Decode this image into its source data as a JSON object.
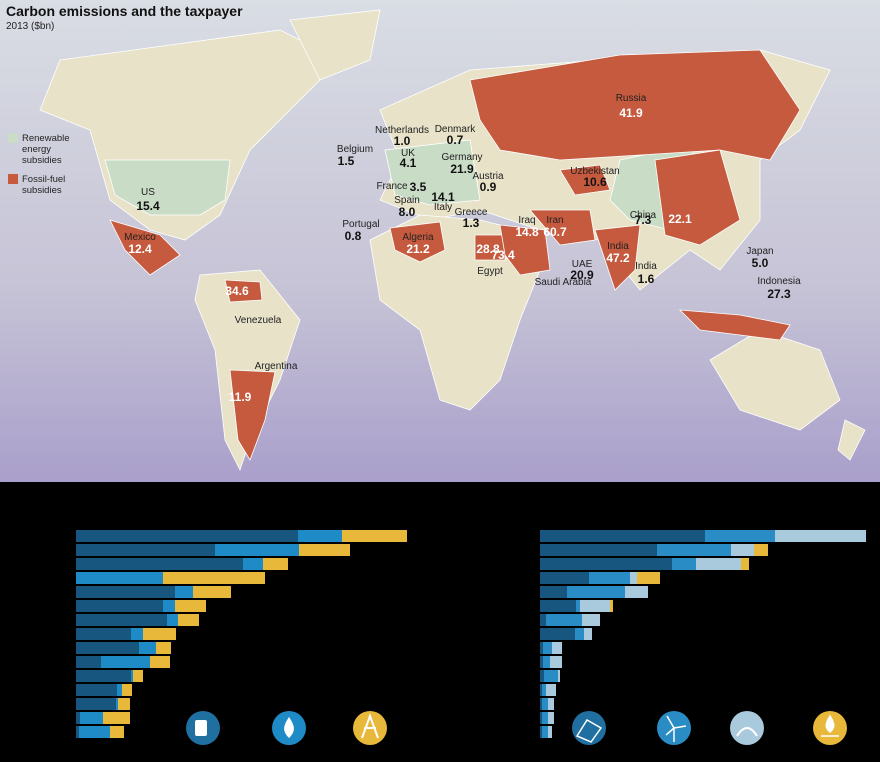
{
  "map": {
    "title": "Carbon emissions and the taxpayer",
    "subtitle": "2013 ($bn)",
    "legend": [
      {
        "name": "Renewable energy subsidies",
        "color": "#c9dcc6"
      },
      {
        "name": "Fossil-fuel subsidies",
        "color": "#c65a3e"
      }
    ],
    "labels": [
      {
        "name": "Russia",
        "value": "41.9"
      },
      {
        "name": "Netherlands",
        "value": "1.0"
      },
      {
        "name": "Denmark",
        "value": "0.7"
      },
      {
        "name": "Belgium",
        "value": "1.5"
      },
      {
        "name": "UK",
        "value": "4.1"
      },
      {
        "name": "Germany",
        "value": "21.9"
      },
      {
        "name": "Uzbekistan",
        "value": "10.6"
      },
      {
        "name": "Austria",
        "value": "0.9"
      },
      {
        "name": "US",
        "value": "15.4"
      },
      {
        "name": "France",
        "value": "3.5"
      },
      {
        "name": "Italy",
        "value": "14.1"
      },
      {
        "name": "Spain",
        "value": "8.0"
      },
      {
        "name": "Portugal",
        "value": "0.8"
      },
      {
        "name": "Greece",
        "value": "1.3"
      },
      {
        "name": "Iraq",
        "value": "14.8"
      },
      {
        "name": "Iran",
        "value": "60.7"
      },
      {
        "name": "China",
        "value": "7.3"
      },
      {
        "name": "Mexico",
        "value": "12.4"
      },
      {
        "name": "Algeria",
        "value": "21.2"
      },
      {
        "name": "Egypt",
        "value": "28.8"
      },
      {
        "name": "Saudi Arabia",
        "value": "73.4"
      },
      {
        "name": "UAE",
        "value": "20.9"
      },
      {
        "name": "India",
        "value": "47.2"
      },
      {
        "name": "Japan",
        "value": "5.0"
      },
      {
        "name": "India",
        "value": "1.6"
      },
      {
        "name": "Indonesia",
        "value": "27.3"
      },
      {
        "name": "Venezuela",
        "value": "34.6"
      },
      {
        "name": "Argentina",
        "value": "11.9"
      }
    ],
    "china_fossil_value": "22.1"
  },
  "chart_data": [
    {
      "type": "bar",
      "orientation": "horizontal",
      "stacked": true,
      "categories": [
        null,
        null,
        null,
        null,
        null,
        null,
        null,
        null,
        null,
        null,
        null,
        null,
        null,
        null,
        null
      ],
      "xlim": [
        0,
        340
      ],
      "series": [
        {
          "color": "#17577f",
          "values": [
            222,
            139,
            167,
            0,
            99,
            87,
            91,
            55,
            63,
            25,
            55,
            41,
            40,
            4,
            3
          ]
        },
        {
          "color": "#1f8bc6",
          "values": [
            44,
            84,
            20,
            87,
            18,
            12,
            11,
            12,
            17,
            49,
            2,
            5,
            2,
            23,
            31
          ]
        },
        {
          "color": "#e8b83a",
          "values": [
            65,
            51,
            25,
            102,
            38,
            31,
            21,
            33,
            15,
            20,
            10,
            10,
            12,
            27,
            14
          ]
        }
      ]
    },
    {
      "type": "bar",
      "orientation": "horizontal",
      "stacked": true,
      "categories": [
        null,
        null,
        null,
        null,
        null,
        null,
        null,
        null,
        null,
        null,
        null,
        null,
        null,
        null,
        null
      ],
      "xlim": [
        0,
        340
      ],
      "series": [
        {
          "color": "#17577f",
          "values": [
            165,
            117,
            132,
            49,
            27,
            36,
            6,
            35,
            3,
            3,
            4,
            2,
            2,
            2,
            2
          ]
        },
        {
          "color": "#2a8cc4",
          "values": [
            70,
            74,
            24,
            41,
            58,
            4,
            36,
            9,
            9,
            7,
            14,
            4,
            6,
            6,
            6
          ]
        },
        {
          "color": "#a9c9dd",
          "values": [
            91,
            23,
            45,
            7,
            23,
            30,
            18,
            8,
            10,
            12,
            2,
            10,
            6,
            6,
            4
          ]
        },
        {
          "color": "#e8b83a",
          "values": [
            0,
            14,
            8,
            23,
            0,
            3,
            0,
            0,
            0,
            0,
            0,
            0,
            0,
            0,
            0
          ]
        }
      ]
    }
  ]
}
